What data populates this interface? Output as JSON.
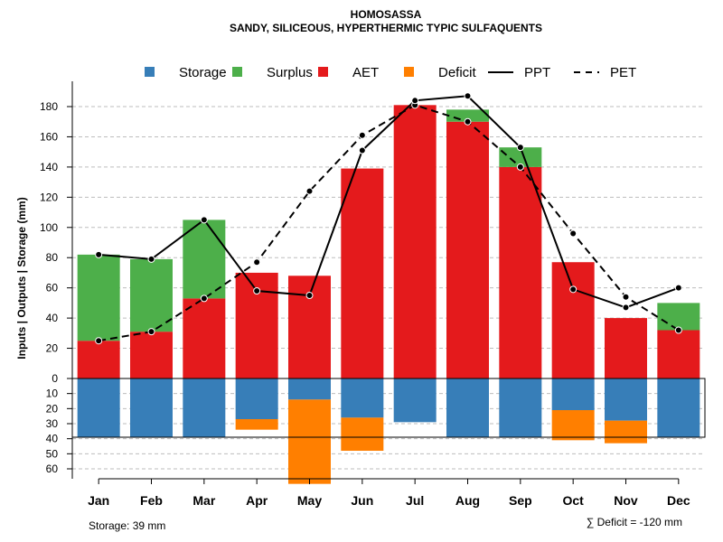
{
  "chart_data": {
    "type": "bar",
    "title": "HOMOSASSA",
    "subtitle": "SANDY, SILICEOUS, HYPERTHERMIC TYPIC SULFAQUENTS",
    "ylabel": "Inputs | Outputs | Storage    (mm)",
    "categories": [
      "Jan",
      "Feb",
      "Mar",
      "Apr",
      "May",
      "Jun",
      "Jul",
      "Aug",
      "Sep",
      "Oct",
      "Nov",
      "Dec"
    ],
    "upper_ylim": [
      0,
      190
    ],
    "upper_ticks": [
      "0",
      "20",
      "40",
      "60",
      "80",
      "100",
      "120",
      "140",
      "160",
      "180"
    ],
    "lower_ylim": [
      0,
      60
    ],
    "lower_ticks": [
      "0",
      "10",
      "20",
      "30",
      "40",
      "50",
      "60"
    ],
    "series": [
      {
        "name": "AET",
        "color": "#e41a1c",
        "values": [
          25,
          31,
          53,
          70,
          68,
          139,
          181,
          170,
          140,
          77,
          40,
          32
        ]
      },
      {
        "name": "Surplus",
        "color": "#4daf4a",
        "values": [
          57,
          48,
          52,
          0,
          0,
          0,
          0,
          8,
          13,
          0,
          0,
          18
        ]
      },
      {
        "name": "Storage",
        "color": "#377eb8",
        "values": [
          39,
          39,
          39,
          27,
          14,
          26,
          29,
          39,
          39,
          21,
          28,
          39
        ]
      },
      {
        "name": "Deficit",
        "color": "#ff7f00",
        "values": [
          0,
          0,
          0,
          7,
          56,
          22,
          0,
          0,
          0,
          20,
          15,
          0
        ]
      },
      {
        "name": "PPT",
        "values": [
          82,
          79,
          105,
          58,
          55,
          151,
          184,
          187,
          153,
          59,
          47,
          60
        ]
      },
      {
        "name": "PET",
        "values": [
          25,
          31,
          53,
          77,
          124,
          161,
          181,
          170,
          140,
          96,
          54,
          32
        ]
      }
    ],
    "storage_capacity": 39,
    "legend": [
      {
        "label": "Storage",
        "color": "#377eb8",
        "kind": "square"
      },
      {
        "label": "Surplus",
        "color": "#4daf4a",
        "kind": "square"
      },
      {
        "label": "AET",
        "color": "#e41a1c",
        "kind": "square"
      },
      {
        "label": "Deficit",
        "color": "#ff7f00",
        "kind": "square"
      },
      {
        "label": "PPT",
        "color": "#000000",
        "kind": "solid"
      },
      {
        "label": "PET",
        "color": "#000000",
        "kind": "dashed"
      }
    ],
    "legend_position": "top",
    "grid": true,
    "footer_storage": "Storage: 39 mm",
    "footer_deficit": "∑ Deficit = -120 mm"
  }
}
